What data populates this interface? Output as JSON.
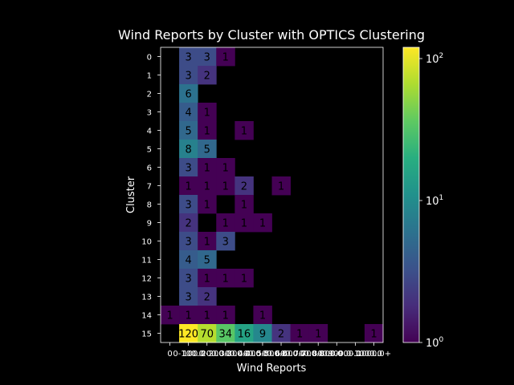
{
  "chart_data": {
    "type": "heatmap",
    "title": "Wind Reports by Cluster with OPTICS Clustering",
    "xlabel": "Wind Reports",
    "ylabel": "Cluster",
    "x_categories": [
      "0",
      "0-100.0",
      "100.0-200.0",
      "200.0-300.0",
      "300.0-400.0",
      "400.0-500.0",
      "500.0-600.0",
      "600.0-700.0",
      "700.0-800.0",
      "800.0-900.0",
      "900.0-1000.0",
      "1000.0+"
    ],
    "x_tick_labels": [
      "0",
      "0-100.0",
      "100.0-200.0",
      "200.0-300.0",
      "300.0-400.0",
      "400.0-500.0",
      "500.0-600.0",
      "600.0-700.0",
      "700.0-800.0",
      "800.0-900.0",
      "900.0-1000.0",
      "1000.0+"
    ],
    "y_categories": [
      "0",
      "1",
      "2",
      "3",
      "4",
      "5",
      "6",
      "7",
      "8",
      "9",
      "10",
      "11",
      "12",
      "13",
      "14",
      "15"
    ],
    "values": [
      [
        null,
        3,
        3,
        1,
        null,
        null,
        null,
        null,
        null,
        null,
        null,
        null
      ],
      [
        null,
        3,
        2,
        null,
        null,
        null,
        null,
        null,
        null,
        null,
        null,
        null
      ],
      [
        null,
        6,
        null,
        null,
        null,
        null,
        null,
        null,
        null,
        null,
        null,
        null
      ],
      [
        null,
        4,
        1,
        null,
        null,
        null,
        null,
        null,
        null,
        null,
        null,
        null
      ],
      [
        null,
        5,
        1,
        null,
        1,
        null,
        null,
        null,
        null,
        null,
        null,
        null
      ],
      [
        null,
        8,
        5,
        null,
        null,
        null,
        null,
        null,
        null,
        null,
        null,
        null
      ],
      [
        null,
        3,
        1,
        1,
        null,
        null,
        null,
        null,
        null,
        null,
        null,
        null
      ],
      [
        null,
        1,
        1,
        1,
        2,
        null,
        1,
        null,
        null,
        null,
        null,
        null
      ],
      [
        null,
        3,
        1,
        null,
        1,
        null,
        null,
        null,
        null,
        null,
        null,
        null
      ],
      [
        null,
        2,
        null,
        1,
        1,
        1,
        null,
        null,
        null,
        null,
        null,
        null
      ],
      [
        null,
        3,
        1,
        3,
        null,
        null,
        null,
        null,
        null,
        null,
        null,
        null
      ],
      [
        null,
        4,
        5,
        null,
        null,
        null,
        null,
        null,
        null,
        null,
        null,
        null
      ],
      [
        null,
        3,
        1,
        1,
        1,
        null,
        null,
        null,
        null,
        null,
        null,
        null
      ],
      [
        null,
        3,
        2,
        null,
        null,
        null,
        null,
        null,
        null,
        null,
        null,
        null
      ],
      [
        1,
        1,
        1,
        1,
        null,
        1,
        null,
        null,
        null,
        null,
        null,
        null
      ],
      [
        null,
        120,
        70,
        34,
        16,
        9,
        2,
        1,
        1,
        null,
        null,
        1
      ]
    ],
    "colorbar": {
      "scale": "log",
      "range": [
        1,
        120
      ],
      "colormap": "viridis",
      "ticks": [
        {
          "base": "10",
          "exp": "0",
          "value": 1
        },
        {
          "base": "10",
          "exp": "1",
          "value": 10
        },
        {
          "base": "10",
          "exp": "2",
          "value": 100
        }
      ]
    }
  }
}
